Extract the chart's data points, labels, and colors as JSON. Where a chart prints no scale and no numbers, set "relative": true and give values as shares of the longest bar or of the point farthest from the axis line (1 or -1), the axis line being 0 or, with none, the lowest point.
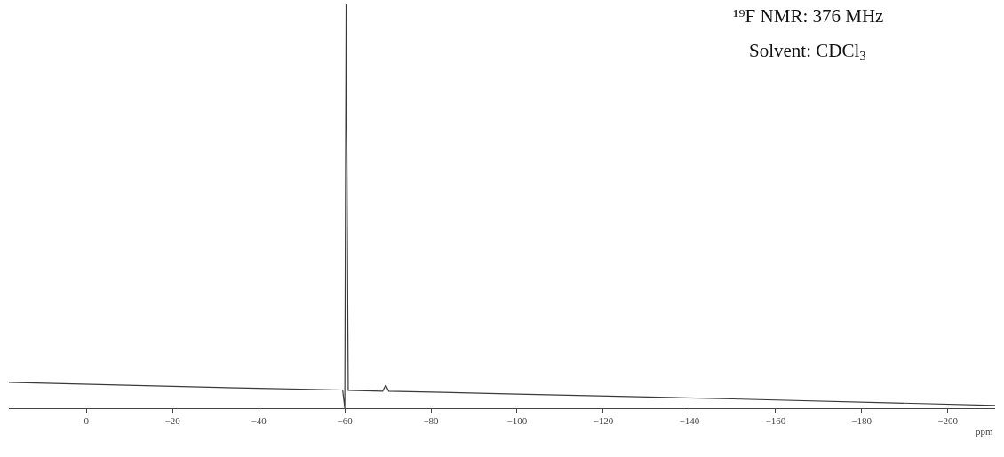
{
  "chart_data": {
    "type": "line",
    "relative": true,
    "xlabel": "ppm",
    "annotations": [
      "¹⁹F NMR: 376 MHz",
      "Solvent: CDCl$_{3}$"
    ],
    "x": [
      18,
      -20,
      -40,
      -59.5,
      -60.0,
      -60.3,
      -60.8,
      -68.8,
      -69.5,
      -70.2,
      -100,
      -150,
      -211
    ],
    "series": [
      {
        "color": "#3a3a3a",
        "values": [
          0.064,
          0.054,
          0.049,
          0.045,
          0.0,
          1,
          0.044,
          0.042,
          0.057,
          0.042,
          0.035,
          0.023,
          0.007
        ]
      }
    ],
    "xlim": [
      18,
      -211
    ],
    "xticks": [
      0,
      -20,
      -40,
      -60,
      -80,
      -100,
      -120,
      -140,
      -160,
      -180,
      -200
    ],
    "tick_labels": "x",
    "marker": "none",
    "line_style": "solid"
  }
}
